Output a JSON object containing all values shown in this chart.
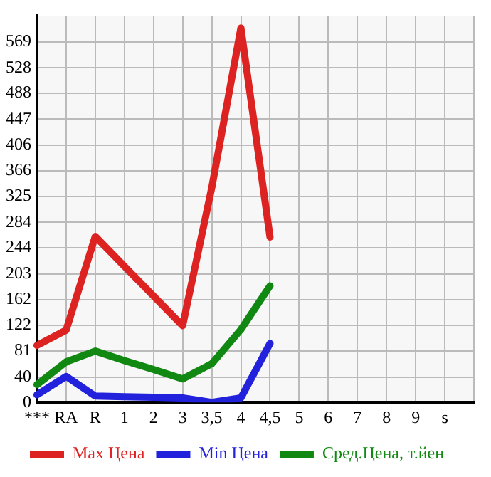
{
  "chart_data": {
    "type": "line",
    "categories": [
      "***",
      "RA",
      "R",
      "1",
      "2",
      "3",
      "3,5",
      "4",
      "4,5",
      "5",
      "6",
      "7",
      "8",
      "9",
      "s",
      null
    ],
    "series": [
      {
        "name": "Max Цена",
        "color": "#dd2222",
        "values": [
          90,
          114,
          262,
          215,
          168,
          121,
          339,
          591,
          261,
          null,
          null,
          null,
          null,
          null,
          null,
          null
        ]
      },
      {
        "name": "Min Цена",
        "color": "#2222dd",
        "values": [
          12,
          41,
          10,
          9,
          8,
          7,
          0,
          7,
          93,
          null,
          null,
          null,
          null,
          null,
          null,
          null
        ]
      },
      {
        "name": "Сред.Цена, т.йен",
        "color": "#118811",
        "values": [
          28,
          64,
          81,
          66,
          52,
          37,
          61,
          115,
          184,
          null,
          null,
          null,
          null,
          null,
          null,
          null
        ]
      }
    ],
    "ylim": [
      0,
      610
    ],
    "yticks": [
      0,
      40,
      81,
      122,
      162,
      203,
      244,
      284,
      325,
      366,
      406,
      447,
      488,
      528,
      569
    ],
    "grid": true,
    "legend": "bottom",
    "marker": "none",
    "line_style": "solid"
  }
}
